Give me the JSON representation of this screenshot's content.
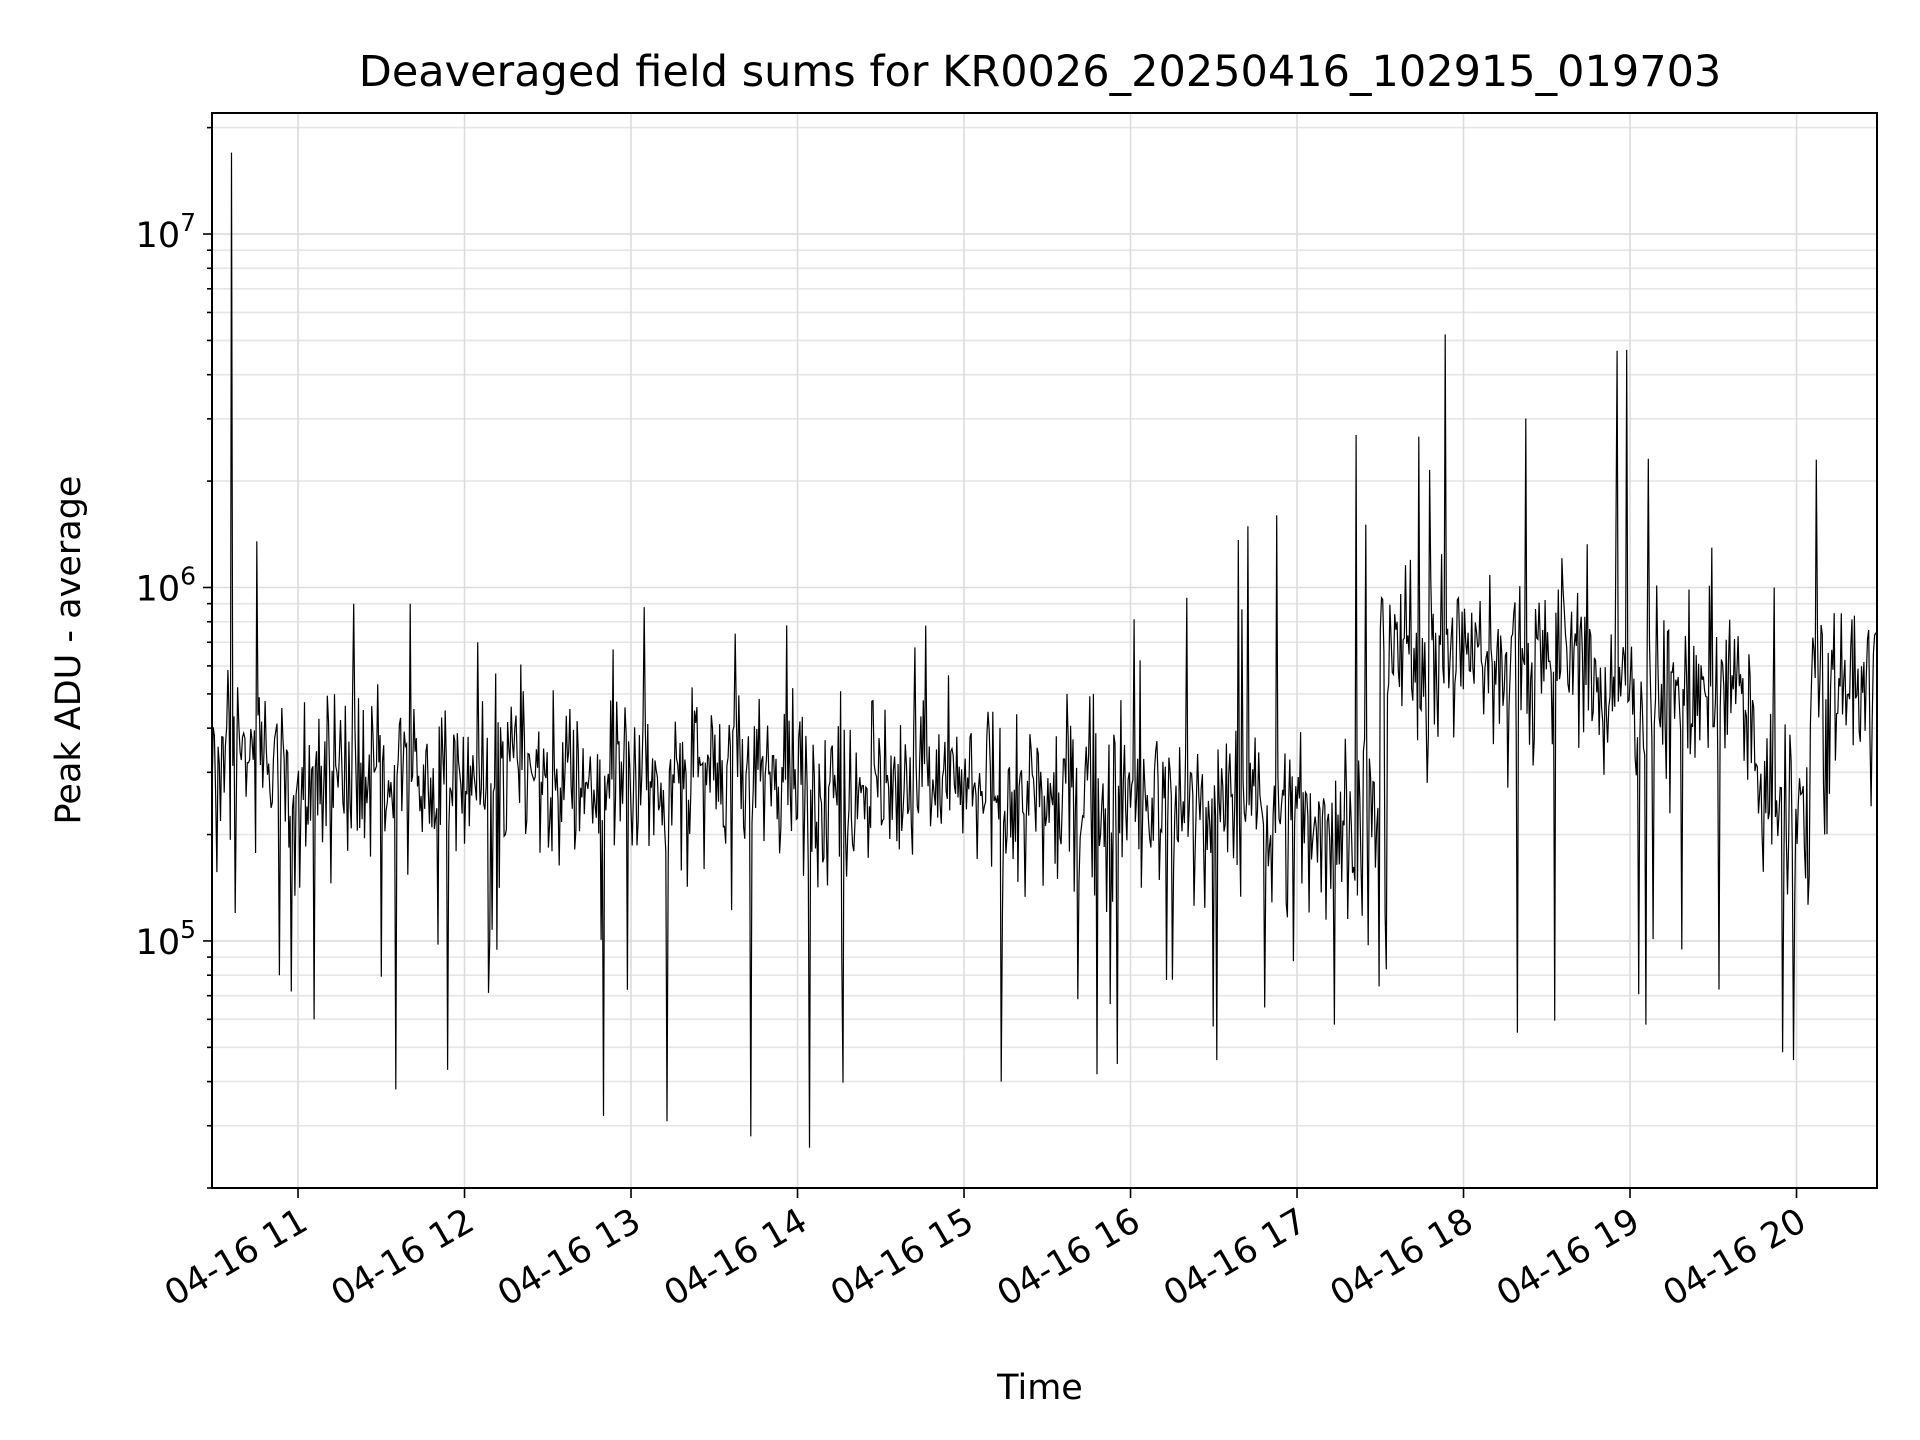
{
  "chart_data": {
    "type": "line",
    "title": "Deaveraged field sums for KR0026_20250416_102915_019703",
    "xlabel": "Time",
    "ylabel": "Peak ADU - average",
    "yscale": "log",
    "ylim": [
      20000,
      22000000
    ],
    "xlim": [
      "04-16 10:29",
      "04-16 20:29"
    ],
    "grid": true,
    "x_ticks": [
      "04-16 11",
      "04-16 12",
      "04-16 13",
      "04-16 14",
      "04-16 15",
      "04-16 16",
      "04-16 17",
      "04-16 18",
      "04-16 19",
      "04-16 20"
    ],
    "y_ticks": [
      {
        "value": 100000,
        "base": "10",
        "exp": "5"
      },
      {
        "value": 1000000,
        "base": "10",
        "exp": "6"
      },
      {
        "value": 10000000,
        "base": "10",
        "exp": "7"
      }
    ],
    "series": [
      {
        "color": "#000000",
        "segments": [
          {
            "start": "04-16 10:29",
            "end": "04-16 10:40",
            "median": 350000,
            "min": 120000,
            "max": 17000000
          },
          {
            "start": "04-16 10:40",
            "end": "04-16 10:55",
            "median": 330000,
            "min": 80000,
            "max": 1350000
          },
          {
            "start": "04-16 10:55",
            "end": "04-16 11:30",
            "median": 300000,
            "min": 60000,
            "max": 900000
          },
          {
            "start": "04-16 11:30",
            "end": "04-16 12:00",
            "median": 300000,
            "min": 38000,
            "max": 900000
          },
          {
            "start": "04-16 12:00",
            "end": "04-16 13:00",
            "median": 290000,
            "min": 32000,
            "max": 700000
          },
          {
            "start": "04-16 13:00",
            "end": "04-16 14:00",
            "median": 290000,
            "min": 28000,
            "max": 880000
          },
          {
            "start": "04-16 14:00",
            "end": "04-16 15:00",
            "median": 280000,
            "min": 26000,
            "max": 780000
          },
          {
            "start": "04-16 15:00",
            "end": "04-16 16:00",
            "median": 250000,
            "min": 40000,
            "max": 500000
          },
          {
            "start": "04-16 16:00",
            "end": "04-16 17:00",
            "median": 240000,
            "min": 46000,
            "max": 1600000
          },
          {
            "start": "04-16 17:00",
            "end": "04-16 17:30",
            "median": 220000,
            "min": 58000,
            "max": 2700000
          },
          {
            "start": "04-16 17:30",
            "end": "04-16 18:45",
            "median": 650000,
            "min": 55000,
            "max": 5200000
          },
          {
            "start": "04-16 18:45",
            "end": "04-16 19:45",
            "median": 500000,
            "min": 58000,
            "max": 4700000
          },
          {
            "start": "04-16 19:45",
            "end": "04-16 20:05",
            "median": 230000,
            "min": 46000,
            "max": 1000000
          },
          {
            "start": "04-16 20:05",
            "end": "04-16 20:29",
            "median": 500000,
            "min": 200000,
            "max": 2300000
          }
        ]
      }
    ]
  }
}
